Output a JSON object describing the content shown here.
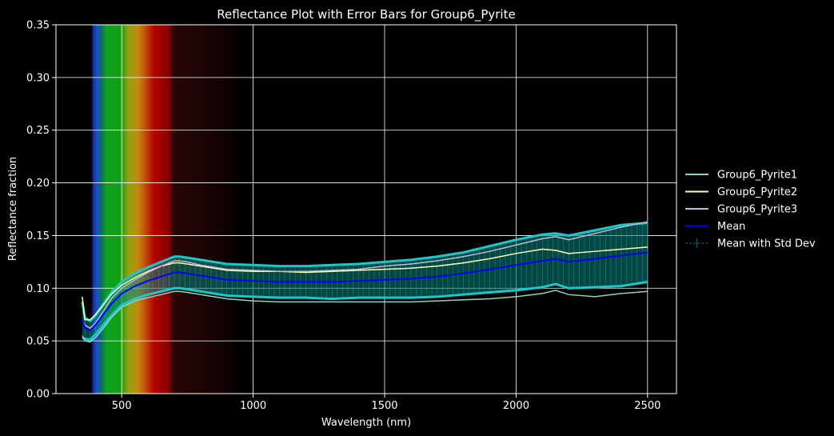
{
  "chart_data": {
    "type": "line",
    "title": "Reflectance Plot with Error Bars for Group6_Pyrite",
    "xlabel": "Wavelength (nm)",
    "ylabel": "Reflectance fraction",
    "xlim": [
      250,
      2610
    ],
    "ylim": [
      0,
      0.35
    ],
    "xticks": [
      500,
      1000,
      1500,
      2000,
      2500
    ],
    "yticks": [
      0.0,
      0.05,
      0.1,
      0.15,
      0.2,
      0.25,
      0.3,
      0.35
    ],
    "xtick_labels": [
      "500",
      "1000",
      "1500",
      "2000",
      "2500"
    ],
    "ytick_labels": [
      "0.00",
      "0.05",
      "0.10",
      "0.15",
      "0.20",
      "0.25",
      "0.30",
      "0.35"
    ],
    "grid": true,
    "legend_position": "outside-right",
    "background": "#000000",
    "visible_spectrum_band": [
      380,
      950
    ],
    "x": [
      350,
      360,
      380,
      400,
      430,
      460,
      500,
      550,
      600,
      650,
      700,
      720,
      750,
      800,
      900,
      1000,
      1100,
      1200,
      1300,
      1400,
      1500,
      1600,
      1700,
      1800,
      1900,
      2000,
      2100,
      2150,
      2200,
      2300,
      2400,
      2500
    ],
    "series": [
      {
        "name": "Group6_Pyrite1",
        "color": "#8dd3c7",
        "values": [
          0.055,
          0.05,
          0.049,
          0.053,
          0.062,
          0.072,
          0.082,
          0.088,
          0.091,
          0.094,
          0.097,
          0.097,
          0.096,
          0.094,
          0.09,
          0.088,
          0.087,
          0.087,
          0.087,
          0.087,
          0.087,
          0.087,
          0.088,
          0.089,
          0.09,
          0.092,
          0.095,
          0.098,
          0.094,
          0.092,
          0.095,
          0.097
        ]
      },
      {
        "name": "Group6_Pyrite2",
        "color": "#ffffb3",
        "values": [
          0.092,
          0.07,
          0.07,
          0.075,
          0.084,
          0.094,
          0.103,
          0.11,
          0.116,
          0.121,
          0.124,
          0.124,
          0.123,
          0.121,
          0.117,
          0.116,
          0.116,
          0.115,
          0.116,
          0.117,
          0.118,
          0.119,
          0.121,
          0.124,
          0.128,
          0.133,
          0.137,
          0.136,
          0.133,
          0.135,
          0.137,
          0.139
        ]
      },
      {
        "name": "Group6_Pyrite3",
        "color": "#bebada",
        "values": [
          0.07,
          0.065,
          0.062,
          0.067,
          0.078,
          0.09,
          0.1,
          0.108,
          0.115,
          0.121,
          0.126,
          0.126,
          0.125,
          0.122,
          0.118,
          0.117,
          0.116,
          0.116,
          0.117,
          0.118,
          0.121,
          0.123,
          0.126,
          0.13,
          0.135,
          0.141,
          0.147,
          0.149,
          0.146,
          0.152,
          0.158,
          0.163
        ]
      },
      {
        "name": "Mean",
        "color": "#0000ff",
        "values": [
          0.07,
          0.062,
          0.06,
          0.065,
          0.075,
          0.085,
          0.095,
          0.102,
          0.107,
          0.111,
          0.115,
          0.115,
          0.114,
          0.112,
          0.108,
          0.107,
          0.106,
          0.106,
          0.106,
          0.107,
          0.108,
          0.109,
          0.111,
          0.114,
          0.118,
          0.122,
          0.126,
          0.128,
          0.125,
          0.128,
          0.131,
          0.134
        ]
      }
    ],
    "errorbar": {
      "name": "Mean with Std Dev",
      "color": "#00cccc",
      "std": [
        0.017,
        0.01,
        0.009,
        0.009,
        0.01,
        0.011,
        0.011,
        0.012,
        0.013,
        0.014,
        0.015,
        0.015,
        0.015,
        0.015,
        0.015,
        0.015,
        0.015,
        0.015,
        0.016,
        0.016,
        0.017,
        0.018,
        0.019,
        0.02,
        0.022,
        0.024,
        0.025,
        0.024,
        0.025,
        0.027,
        0.029,
        0.028
      ]
    }
  }
}
